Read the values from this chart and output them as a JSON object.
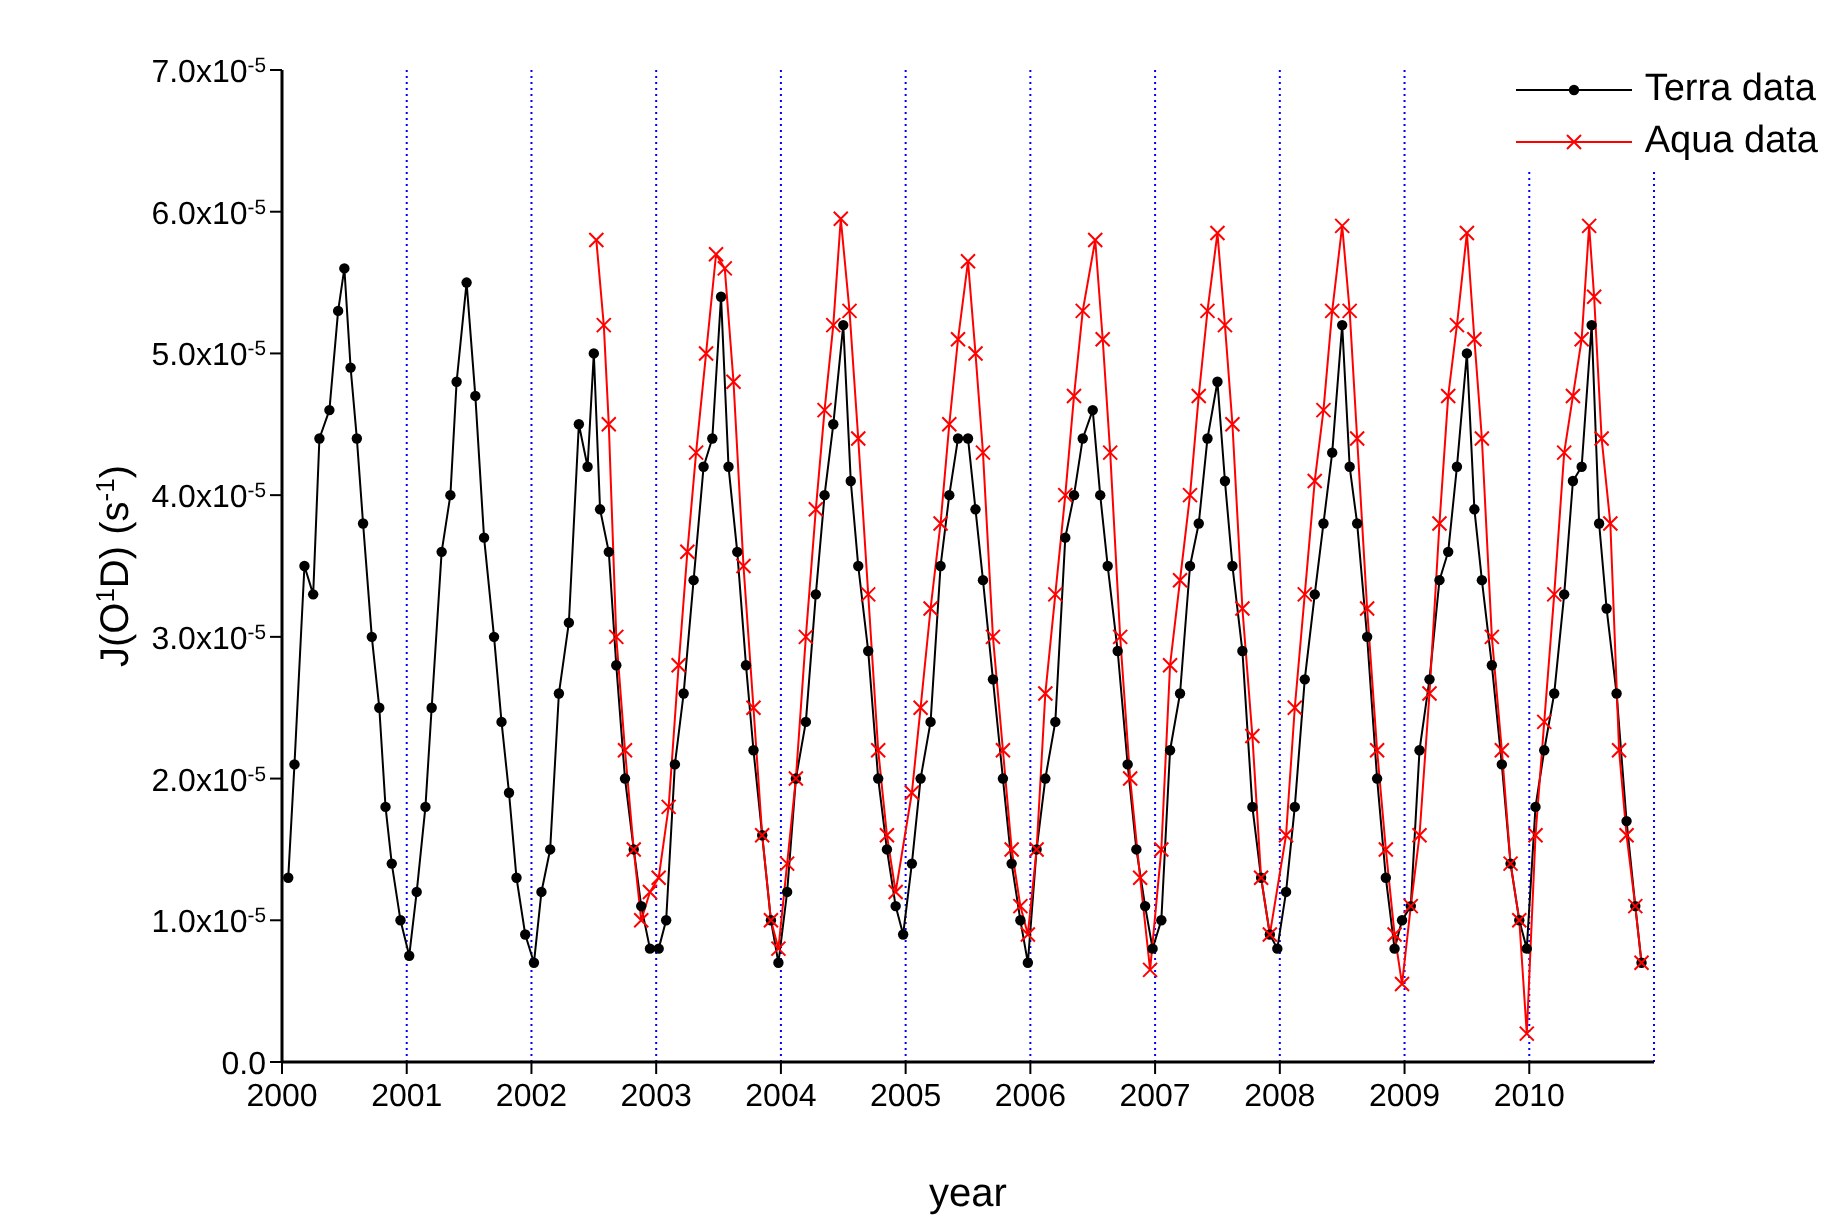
{
  "chart_data": {
    "type": "line",
    "xlabel": "year",
    "ylabel": "J(O$^{1}$D) (s$^{-1}$)",
    "xlim": [
      2000,
      2011
    ],
    "xticks": [
      2000,
      2001,
      2002,
      2003,
      2004,
      2005,
      2006,
      2007,
      2008,
      2009,
      2010
    ],
    "ylim": [
      0,
      7e-05
    ],
    "yticks": [
      {
        "value": 0,
        "label": "0.0"
      },
      {
        "value": 1e-05,
        "label": "1.0x10$^{-5}$"
      },
      {
        "value": 2e-05,
        "label": "2.0x10$^{-5}$"
      },
      {
        "value": 3e-05,
        "label": "3.0x10$^{-5}$"
      },
      {
        "value": 4e-05,
        "label": "4.0x10$^{-5}$"
      },
      {
        "value": 5e-05,
        "label": "5.0x10$^{-5}$"
      },
      {
        "value": 6e-05,
        "label": "6.0x10$^{-5}$"
      },
      {
        "value": 7e-05,
        "label": "7.0x10$^{-5}$"
      }
    ],
    "grid": "x",
    "legend": "top right",
    "series": [
      {
        "name": "Terra data",
        "color": "#000000",
        "marker": "circle",
        "x": [
          2000.05,
          2000.1,
          2000.18,
          2000.25,
          2000.3,
          2000.38,
          2000.45,
          2000.5,
          2000.55,
          2000.6,
          2000.65,
          2000.72,
          2000.78,
          2000.83,
          2000.88,
          2000.95,
          2001.02,
          2001.08,
          2001.15,
          2001.2,
          2001.28,
          2001.35,
          2001.4,
          2001.48,
          2001.55,
          2001.62,
          2001.7,
          2001.76,
          2001.82,
          2001.88,
          2001.95,
          2002.02,
          2002.08,
          2002.15,
          2002.22,
          2002.3,
          2002.38,
          2002.45,
          2002.5,
          2002.55,
          2002.62,
          2002.68,
          2002.75,
          2002.82,
          2002.88,
          2002.95,
          2003.02,
          2003.08,
          2003.15,
          2003.22,
          2003.3,
          2003.38,
          2003.45,
          2003.52,
          2003.58,
          2003.65,
          2003.72,
          2003.78,
          2003.85,
          2003.92,
          2003.98,
          2004.05,
          2004.12,
          2004.2,
          2004.28,
          2004.35,
          2004.42,
          2004.5,
          2004.56,
          2004.62,
          2004.7,
          2004.78,
          2004.85,
          2004.92,
          2004.98,
          2005.05,
          2005.12,
          2005.2,
          2005.28,
          2005.35,
          2005.42,
          2005.5,
          2005.56,
          2005.62,
          2005.7,
          2005.78,
          2005.85,
          2005.92,
          2005.98,
          2006.05,
          2006.12,
          2006.2,
          2006.28,
          2006.35,
          2006.42,
          2006.5,
          2006.56,
          2006.62,
          2006.7,
          2006.78,
          2006.85,
          2006.92,
          2006.98,
          2007.05,
          2007.12,
          2007.2,
          2007.28,
          2007.35,
          2007.42,
          2007.5,
          2007.56,
          2007.62,
          2007.7,
          2007.78,
          2007.85,
          2007.92,
          2007.98,
          2008.05,
          2008.12,
          2008.2,
          2008.28,
          2008.35,
          2008.42,
          2008.5,
          2008.56,
          2008.62,
          2008.7,
          2008.78,
          2008.85,
          2008.92,
          2008.98,
          2009.05,
          2009.12,
          2009.2,
          2009.28,
          2009.35,
          2009.42,
          2009.5,
          2009.56,
          2009.62,
          2009.7,
          2009.78,
          2009.85,
          2009.92,
          2009.98,
          2010.05,
          2010.12,
          2010.2,
          2010.28,
          2010.35,
          2010.42,
          2010.5,
          2010.56,
          2010.62,
          2010.7,
          2010.78,
          2010.85,
          2010.9
        ],
        "values": [
          1.3e-05,
          2.1e-05,
          3.5e-05,
          3.3e-05,
          4.4e-05,
          4.6e-05,
          5.3e-05,
          5.6e-05,
          4.9e-05,
          4.4e-05,
          3.8e-05,
          3e-05,
          2.5e-05,
          1.8e-05,
          1.4e-05,
          1e-05,
          7.5e-06,
          1.2e-05,
          1.8e-05,
          2.5e-05,
          3.6e-05,
          4e-05,
          4.8e-05,
          5.5e-05,
          4.7e-05,
          3.7e-05,
          3e-05,
          2.4e-05,
          1.9e-05,
          1.3e-05,
          9e-06,
          7e-06,
          1.2e-05,
          1.5e-05,
          2.6e-05,
          3.1e-05,
          4.5e-05,
          4.2e-05,
          5e-05,
          3.9e-05,
          3.6e-05,
          2.8e-05,
          2e-05,
          1.5e-05,
          1.1e-05,
          8e-06,
          8e-06,
          1e-05,
          2.1e-05,
          2.6e-05,
          3.4e-05,
          4.2e-05,
          4.4e-05,
          5.4e-05,
          4.2e-05,
          3.6e-05,
          2.8e-05,
          2.2e-05,
          1.6e-05,
          1e-05,
          7e-06,
          1.2e-05,
          2e-05,
          2.4e-05,
          3.3e-05,
          4e-05,
          4.5e-05,
          5.2e-05,
          4.1e-05,
          3.5e-05,
          2.9e-05,
          2e-05,
          1.5e-05,
          1.1e-05,
          9e-06,
          1.4e-05,
          2e-05,
          2.4e-05,
          3.5e-05,
          4e-05,
          4.4e-05,
          4.4e-05,
          3.9e-05,
          3.4e-05,
          2.7e-05,
          2e-05,
          1.4e-05,
          1e-05,
          7e-06,
          1.5e-05,
          2e-05,
          2.4e-05,
          3.7e-05,
          4e-05,
          4.4e-05,
          4.6e-05,
          4e-05,
          3.5e-05,
          2.9e-05,
          2.1e-05,
          1.5e-05,
          1.1e-05,
          8e-06,
          1e-05,
          2.2e-05,
          2.6e-05,
          3.5e-05,
          3.8e-05,
          4.4e-05,
          4.8e-05,
          4.1e-05,
          3.5e-05,
          2.9e-05,
          1.8e-05,
          1.3e-05,
          9e-06,
          8e-06,
          1.2e-05,
          1.8e-05,
          2.7e-05,
          3.3e-05,
          3.8e-05,
          4.3e-05,
          5.2e-05,
          4.2e-05,
          3.8e-05,
          3e-05,
          2e-05,
          1.3e-05,
          8e-06,
          1e-05,
          1.1e-05,
          2.2e-05,
          2.7e-05,
          3.4e-05,
          3.6e-05,
          4.2e-05,
          5e-05,
          3.9e-05,
          3.4e-05,
          2.8e-05,
          2.1e-05,
          1.4e-05,
          1e-05,
          8e-06,
          1.8e-05,
          2.2e-05,
          2.6e-05,
          3.3e-05,
          4.1e-05,
          4.2e-05,
          5.2e-05,
          3.8e-05,
          3.2e-05,
          2.6e-05,
          1.7e-05,
          1.1e-05,
          7e-06
        ]
      },
      {
        "name": "Aqua data",
        "color": "#ff0000",
        "marker": "cross",
        "x": [
          2002.52,
          2002.58,
          2002.62,
          2002.68,
          2002.75,
          2002.82,
          2002.88,
          2002.95,
          2003.02,
          2003.1,
          2003.18,
          2003.25,
          2003.32,
          2003.4,
          2003.48,
          2003.55,
          2003.62,
          2003.7,
          2003.78,
          2003.85,
          2003.92,
          2003.98,
          2004.05,
          2004.12,
          2004.2,
          2004.28,
          2004.35,
          2004.42,
          2004.48,
          2004.55,
          2004.62,
          2004.7,
          2004.78,
          2004.85,
          2004.92,
          2005.05,
          2005.12,
          2005.2,
          2005.28,
          2005.35,
          2005.42,
          2005.5,
          2005.56,
          2005.62,
          2005.7,
          2005.78,
          2005.85,
          2005.92,
          2005.98,
          2006.05,
          2006.12,
          2006.2,
          2006.28,
          2006.35,
          2006.42,
          2006.52,
          2006.58,
          2006.64,
          2006.72,
          2006.8,
          2006.88,
          2006.96,
          2007.05,
          2007.12,
          2007.2,
          2007.28,
          2007.35,
          2007.42,
          2007.5,
          2007.56,
          2007.62,
          2007.7,
          2007.78,
          2007.85,
          2007.92,
          2008.05,
          2008.12,
          2008.2,
          2008.28,
          2008.35,
          2008.42,
          2008.5,
          2008.56,
          2008.62,
          2008.7,
          2008.78,
          2008.85,
          2008.92,
          2008.98,
          2009.05,
          2009.12,
          2009.2,
          2009.28,
          2009.35,
          2009.42,
          2009.5,
          2009.56,
          2009.62,
          2009.7,
          2009.78,
          2009.85,
          2009.92,
          2009.98,
          2010.05,
          2010.12,
          2010.2,
          2010.28,
          2010.35,
          2010.42,
          2010.48,
          2010.52,
          2010.58,
          2010.65,
          2010.72,
          2010.78,
          2010.85,
          2010.9
        ],
        "values": [
          5.8e-05,
          5.2e-05,
          4.5e-05,
          3e-05,
          2.2e-05,
          1.5e-05,
          1e-05,
          1.2e-05,
          1.3e-05,
          1.8e-05,
          2.8e-05,
          3.6e-05,
          4.3e-05,
          5e-05,
          5.7e-05,
          5.6e-05,
          4.8e-05,
          3.5e-05,
          2.5e-05,
          1.6e-05,
          1e-05,
          8e-06,
          1.4e-05,
          2e-05,
          3e-05,
          3.9e-05,
          4.6e-05,
          5.2e-05,
          5.95e-05,
          5.3e-05,
          4.4e-05,
          3.3e-05,
          2.2e-05,
          1.6e-05,
          1.2e-05,
          1.9e-05,
          2.5e-05,
          3.2e-05,
          3.8e-05,
          4.5e-05,
          5.1e-05,
          5.65e-05,
          5e-05,
          4.3e-05,
          3e-05,
          2.2e-05,
          1.5e-05,
          1.1e-05,
          9e-06,
          1.5e-05,
          2.6e-05,
          3.3e-05,
          4e-05,
          4.7e-05,
          5.3e-05,
          5.8e-05,
          5.1e-05,
          4.3e-05,
          3e-05,
          2e-05,
          1.3e-05,
          6.5e-06,
          1.5e-05,
          2.8e-05,
          3.4e-05,
          4e-05,
          4.7e-05,
          5.3e-05,
          5.85e-05,
          5.2e-05,
          4.5e-05,
          3.2e-05,
          2.3e-05,
          1.3e-05,
          9e-06,
          1.6e-05,
          2.5e-05,
          3.3e-05,
          4.1e-05,
          4.6e-05,
          5.3e-05,
          5.9e-05,
          5.3e-05,
          4.4e-05,
          3.2e-05,
          2.2e-05,
          1.5e-05,
          9e-06,
          5.5e-06,
          1.1e-05,
          1.6e-05,
          2.6e-05,
          3.8e-05,
          4.7e-05,
          5.2e-05,
          5.85e-05,
          5.1e-05,
          4.4e-05,
          3e-05,
          2.2e-05,
          1.4e-05,
          1e-05,
          2e-06,
          1.6e-05,
          2.4e-05,
          3.3e-05,
          4.3e-05,
          4.7e-05,
          5.1e-05,
          5.9e-05,
          5.4e-05,
          4.4e-05,
          3.8e-05,
          2.2e-05,
          1.6e-05,
          1.1e-05,
          7e-06
        ]
      }
    ]
  }
}
